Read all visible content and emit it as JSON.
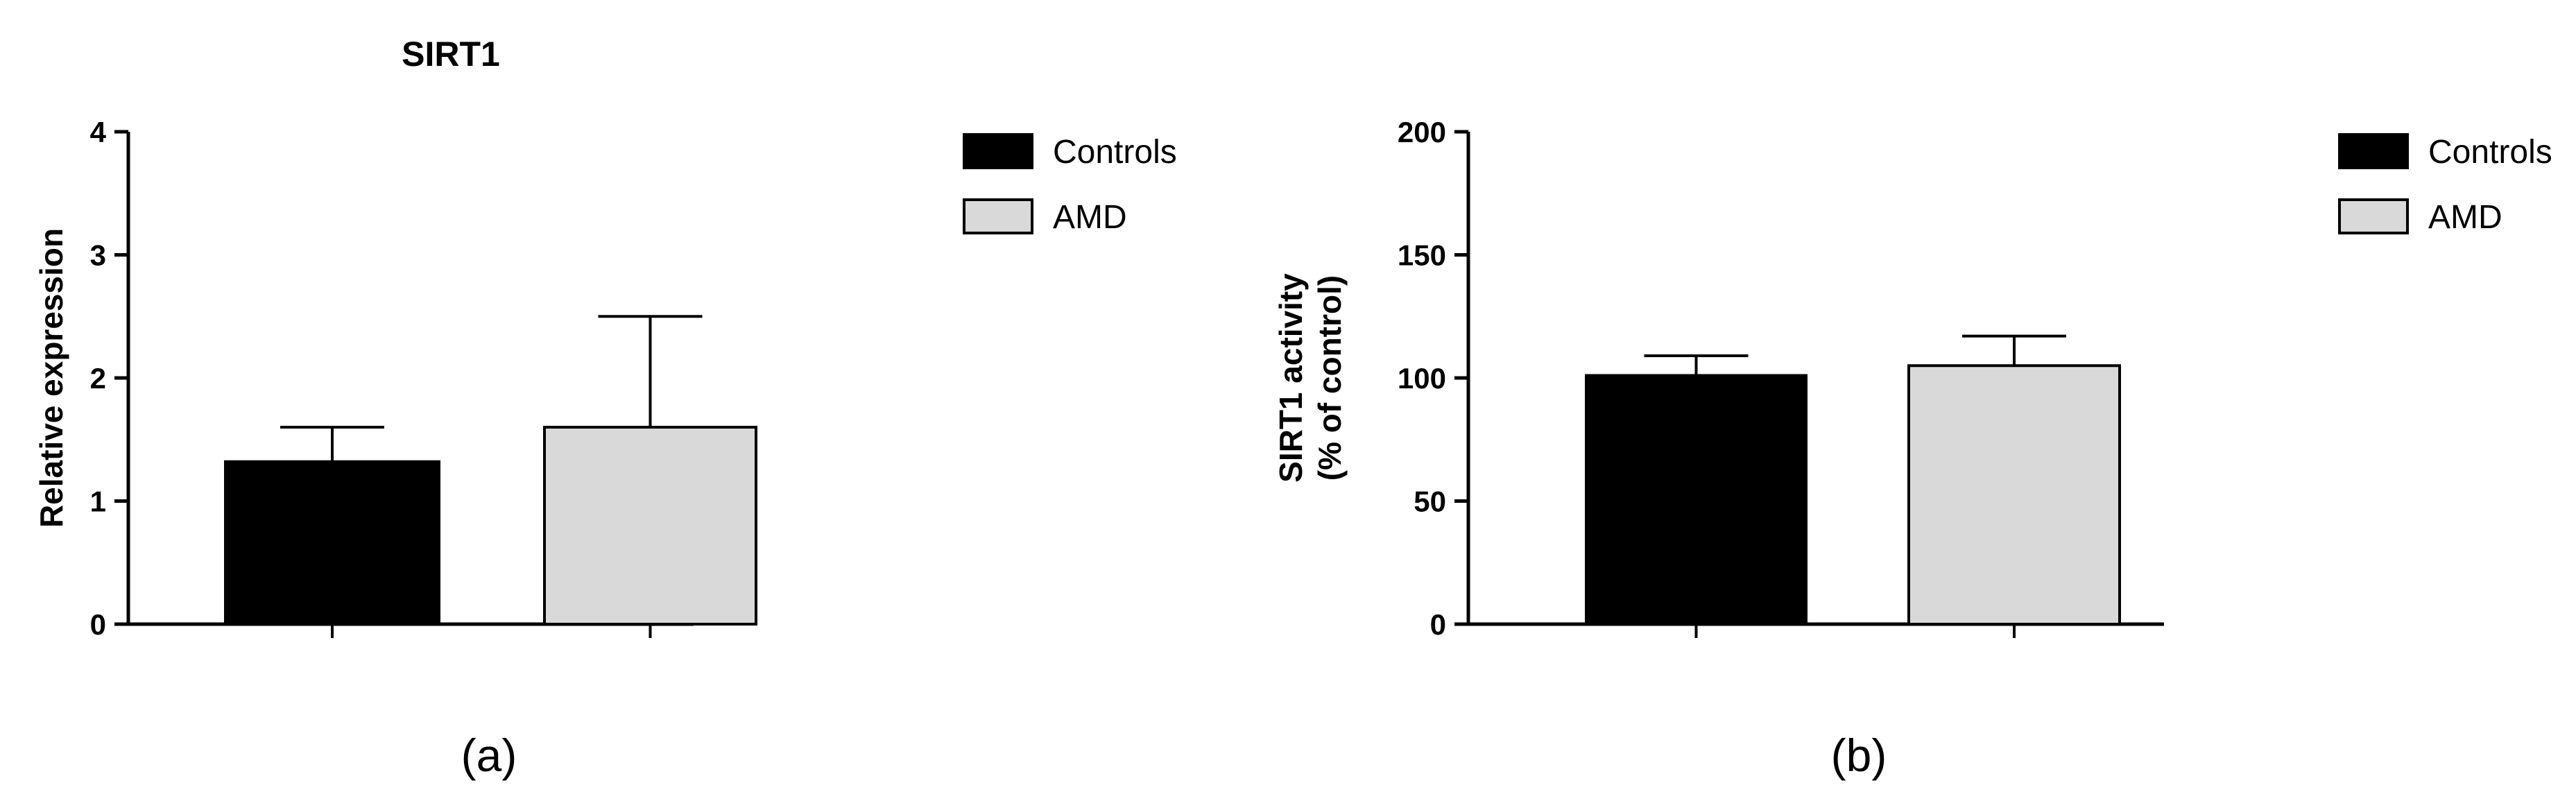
{
  "chart_data": [
    {
      "type": "bar",
      "title": "SIRT1",
      "panel_label": "(a)",
      "xlabel": "",
      "ylabel": "Relative expression",
      "ylim": [
        0,
        4
      ],
      "yticks": [
        "0",
        "1",
        "2",
        "3",
        "4"
      ],
      "categories": [
        "Controls",
        "AMD"
      ],
      "values": [
        1.32,
        1.6
      ],
      "errors": [
        0.28,
        0.9
      ],
      "colors": [
        "#000000",
        "#d9d9d9"
      ],
      "grid": false,
      "legend": {
        "position": "right",
        "entries": [
          "Controls",
          "AMD"
        ]
      }
    },
    {
      "type": "bar",
      "title": "",
      "panel_label": "(b)",
      "xlabel": "",
      "ylabel": [
        "SIRT1 activity",
        "(% of control)"
      ],
      "ylim": [
        0,
        200
      ],
      "yticks": [
        "0",
        "50",
        "100",
        "150",
        "200"
      ],
      "categories": [
        "Controls",
        "AMD"
      ],
      "values": [
        101,
        105
      ],
      "errors": [
        8,
        12
      ],
      "colors": [
        "#000000",
        "#d9d9d9"
      ],
      "grid": false,
      "legend": {
        "position": "right",
        "entries": [
          "Controls",
          "AMD"
        ]
      }
    }
  ]
}
